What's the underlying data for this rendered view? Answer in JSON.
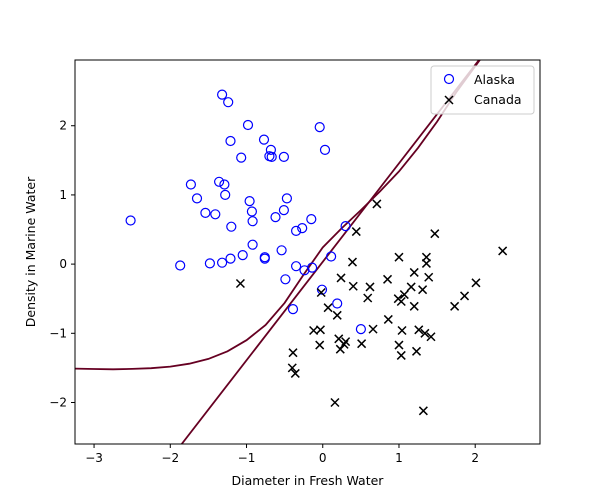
{
  "chart_data": {
    "type": "scatter",
    "xlabel": "Diameter in Fresh Water",
    "ylabel": "Density in Marine Water",
    "xlim": [
      -3.25,
      2.85
    ],
    "ylim": [
      -2.6,
      2.95
    ],
    "xticks": [
      -3,
      -2,
      -1,
      0,
      1,
      2
    ],
    "yticks": [
      -2,
      -1,
      0,
      1,
      2
    ],
    "grid": false,
    "legend_position": "top-right",
    "series": [
      {
        "name": "Alaska",
        "marker": "open-circle",
        "color": "#0000ff",
        "points": [
          [
            -2.52,
            0.63
          ],
          [
            -1.87,
            -0.02
          ],
          [
            -1.73,
            1.15
          ],
          [
            -1.65,
            0.95
          ],
          [
            -1.54,
            0.74
          ],
          [
            -1.48,
            0.01
          ],
          [
            -1.41,
            0.72
          ],
          [
            -1.36,
            1.19
          ],
          [
            -1.32,
            2.45
          ],
          [
            -1.32,
            0.02
          ],
          [
            -1.29,
            1.15
          ],
          [
            -1.28,
            1.0
          ],
          [
            -1.24,
            2.34
          ],
          [
            -1.21,
            1.78
          ],
          [
            -1.21,
            0.08
          ],
          [
            -1.2,
            0.54
          ],
          [
            -1.07,
            1.54
          ],
          [
            -1.05,
            0.13
          ],
          [
            -0.98,
            2.01
          ],
          [
            -0.96,
            0.91
          ],
          [
            -0.93,
            0.76
          ],
          [
            -0.92,
            0.28
          ],
          [
            -0.92,
            0.62
          ],
          [
            -0.77,
            1.8
          ],
          [
            -0.76,
            0.1
          ],
          [
            -0.76,
            0.08
          ],
          [
            -0.7,
            1.56
          ],
          [
            -0.68,
            1.65
          ],
          [
            -0.67,
            1.55
          ],
          [
            -0.62,
            0.68
          ],
          [
            -0.54,
            0.2
          ],
          [
            -0.51,
            0.78
          ],
          [
            -0.51,
            1.55
          ],
          [
            -0.49,
            -0.22
          ],
          [
            -0.47,
            0.95
          ],
          [
            -0.39,
            -0.65
          ],
          [
            -0.35,
            0.48
          ],
          [
            -0.35,
            -0.03
          ],
          [
            -0.27,
            0.52
          ],
          [
            -0.24,
            -0.09
          ],
          [
            -0.15,
            0.65
          ],
          [
            -0.14,
            -0.05
          ],
          [
            -0.04,
            1.98
          ],
          [
            -0.01,
            -0.37
          ],
          [
            0.03,
            1.65
          ],
          [
            0.11,
            0.11
          ],
          [
            0.19,
            -0.57
          ],
          [
            0.3,
            0.55
          ],
          [
            0.5,
            -0.94
          ]
        ]
      },
      {
        "name": "Canada",
        "marker": "x",
        "color": "#000000",
        "points": [
          [
            -1.08,
            -0.28
          ],
          [
            -0.39,
            -1.28
          ],
          [
            -0.4,
            -1.5
          ],
          [
            -0.36,
            -1.58
          ],
          [
            -0.12,
            -0.96
          ],
          [
            -0.04,
            -1.17
          ],
          [
            -0.03,
            -0.95
          ],
          [
            -0.02,
            -0.41
          ],
          [
            0.07,
            -0.63
          ],
          [
            0.16,
            -2.0
          ],
          [
            0.19,
            -0.74
          ],
          [
            0.21,
            -1.08
          ],
          [
            0.23,
            -1.23
          ],
          [
            0.24,
            -0.2
          ],
          [
            0.28,
            -1.16
          ],
          [
            0.3,
            -1.12
          ],
          [
            0.39,
            0.03
          ],
          [
            0.4,
            -0.32
          ],
          [
            0.44,
            0.47
          ],
          [
            0.51,
            -1.15
          ],
          [
            0.59,
            -0.49
          ],
          [
            0.62,
            -0.33
          ],
          [
            0.66,
            -0.94
          ],
          [
            0.71,
            0.87
          ],
          [
            0.85,
            -0.22
          ],
          [
            0.86,
            -0.8
          ],
          [
            0.99,
            -0.5
          ],
          [
            1.0,
            0.1
          ],
          [
            1.0,
            -1.17
          ],
          [
            1.03,
            -0.54
          ],
          [
            1.03,
            -1.32
          ],
          [
            1.04,
            -0.96
          ],
          [
            1.07,
            -0.44
          ],
          [
            1.16,
            -0.33
          ],
          [
            1.2,
            -0.61
          ],
          [
            1.2,
            -0.12
          ],
          [
            1.23,
            -1.26
          ],
          [
            1.26,
            -0.95
          ],
          [
            1.31,
            -0.37
          ],
          [
            1.32,
            -2.12
          ],
          [
            1.34,
            -1.0
          ],
          [
            1.36,
            0.01
          ],
          [
            1.36,
            0.1
          ],
          [
            1.39,
            -0.19
          ],
          [
            1.42,
            -1.05
          ],
          [
            1.47,
            0.44
          ],
          [
            1.73,
            -0.61
          ],
          [
            1.86,
            -0.46
          ],
          [
            2.01,
            -0.27
          ],
          [
            2.36,
            0.19
          ]
        ]
      }
    ],
    "decision_boundaries": [
      {
        "type": "linear",
        "color": "#660022",
        "points": [
          [
            -1.85,
            -2.6
          ],
          [
            2.05,
            2.95
          ]
        ]
      },
      {
        "type": "curve",
        "color": "#660022",
        "points": [
          [
            -3.25,
            -1.51
          ],
          [
            -3.0,
            -1.516
          ],
          [
            -2.75,
            -1.52
          ],
          [
            -2.5,
            -1.515
          ],
          [
            -2.25,
            -1.505
          ],
          [
            -2.0,
            -1.482
          ],
          [
            -1.75,
            -1.44
          ],
          [
            -1.5,
            -1.37
          ],
          [
            -1.25,
            -1.26
          ],
          [
            -1.0,
            -1.1
          ],
          [
            -0.75,
            -0.88
          ],
          [
            -0.5,
            -0.56
          ],
          [
            -0.25,
            -0.15
          ],
          [
            0.0,
            0.24
          ],
          [
            0.25,
            0.52
          ],
          [
            0.5,
            0.78
          ],
          [
            0.75,
            1.05
          ],
          [
            1.0,
            1.34
          ],
          [
            1.25,
            1.68
          ],
          [
            1.5,
            2.06
          ],
          [
            1.75,
            2.48
          ],
          [
            2.06,
            2.95
          ]
        ]
      }
    ]
  }
}
